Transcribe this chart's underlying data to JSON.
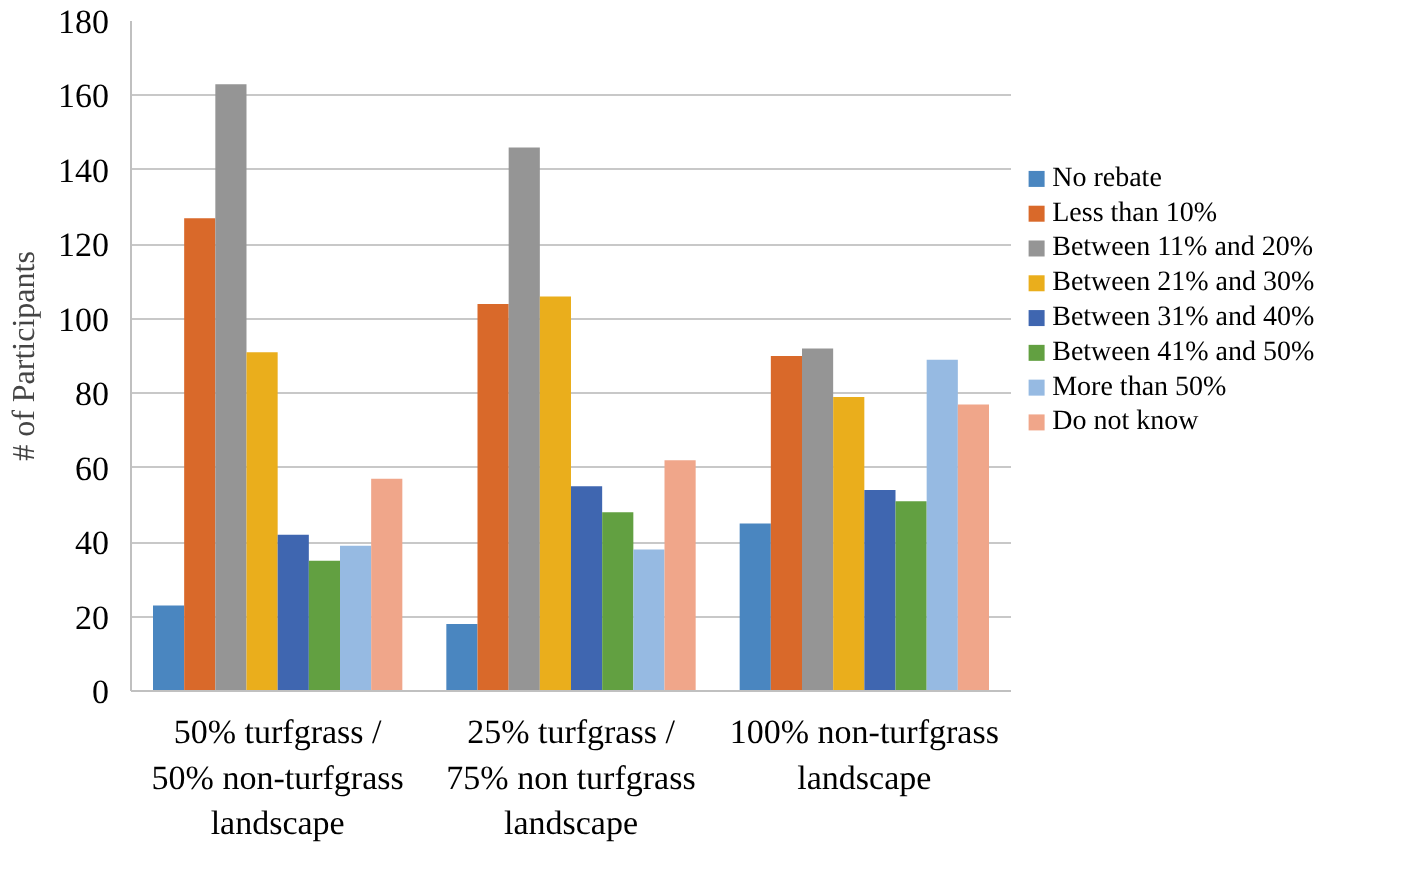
{
  "chart_data": {
    "type": "bar",
    "ylabel": "# of Participants",
    "categories": [
      "50% turfgrass /\n50% non-turfgrass\nlandscape",
      "25% turfgrass /\n75% non turfgrass\nlandscape",
      "100% non-turfgrass\nlandscape"
    ],
    "series": [
      {
        "name": "No rebate",
        "color": "#4a86c0",
        "values": [
          23,
          18,
          45
        ]
      },
      {
        "name": "Less than  10%",
        "color": "#d9692a",
        "values": [
          127,
          104,
          90
        ]
      },
      {
        "name": "Between  11% and  20%",
        "color": "#959595",
        "values": [
          163,
          146,
          92
        ]
      },
      {
        "name": "Between  21% and 30%",
        "color": "#eaae1c",
        "values": [
          91,
          106,
          79
        ]
      },
      {
        "name": "Between  31% and 40%",
        "color": "#3f66b0",
        "values": [
          42,
          55,
          54
        ]
      },
      {
        "name": "Between  41% and 50%",
        "color": "#62a041",
        "values": [
          35,
          48,
          51
        ]
      },
      {
        "name": "More than  50%",
        "color": "#96bae2",
        "values": [
          39,
          38,
          89
        ]
      },
      {
        "name": "Do not know",
        "color": "#f0a68a",
        "values": [
          57,
          62,
          77
        ]
      }
    ],
    "ylim": [
      0,
      180
    ],
    "yticks": [
      0,
      20,
      40,
      60,
      80,
      100,
      120,
      140,
      160,
      180
    ],
    "grid": "y",
    "legend": "right"
  }
}
